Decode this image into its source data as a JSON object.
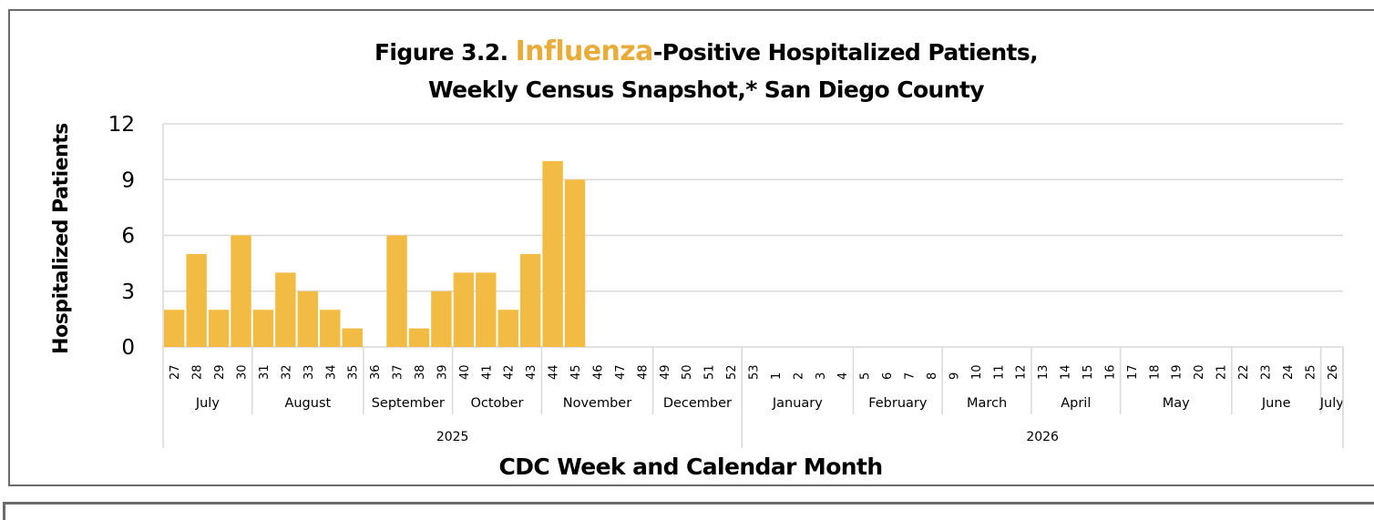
{
  "chart_data": {
    "type": "bar",
    "title": {
      "prefix": "Figure 3.2. ",
      "highlight": "Influenza",
      "suffix": "-Positive Hospitalized Patients,",
      "line2": "Weekly Census Snapshot,* San Diego County"
    },
    "xlabel": "CDC Week and Calendar Month",
    "ylabel": "Hospitalized Patients",
    "ylim": [
      0,
      12
    ],
    "yticks": [
      "0",
      "3",
      "6",
      "9",
      "12"
    ],
    "grid": true,
    "categories": [
      "27",
      "28",
      "29",
      "30",
      "31",
      "32",
      "33",
      "34",
      "35",
      "36",
      "37",
      "38",
      "39",
      "40",
      "41",
      "42",
      "43",
      "44",
      "45",
      "46",
      "47",
      "48",
      "49",
      "50",
      "51",
      "52",
      "53",
      "1",
      "2",
      "3",
      "4",
      "5",
      "6",
      "7",
      "8",
      "9",
      "10",
      "11",
      "12",
      "13",
      "14",
      "15",
      "16",
      "17",
      "18",
      "19",
      "20",
      "21",
      "22",
      "23",
      "24",
      "25",
      "26"
    ],
    "values": [
      2,
      5,
      2,
      6,
      2,
      4,
      3,
      2,
      1,
      0,
      6,
      1,
      3,
      4,
      4,
      2,
      5,
      10,
      9,
      null,
      null,
      null,
      null,
      null,
      null,
      null,
      null,
      null,
      null,
      null,
      null,
      null,
      null,
      null,
      null,
      null,
      null,
      null,
      null,
      null,
      null,
      null,
      null,
      null,
      null,
      null,
      null,
      null,
      null,
      null,
      null,
      null,
      null
    ],
    "months": [
      {
        "label": "July",
        "weeks": 4
      },
      {
        "label": "August",
        "weeks": 5
      },
      {
        "label": "September",
        "weeks": 4
      },
      {
        "label": "October",
        "weeks": 4
      },
      {
        "label": "November",
        "weeks": 5
      },
      {
        "label": "December",
        "weeks": 4
      },
      {
        "label": "January",
        "weeks": 5
      },
      {
        "label": "February",
        "weeks": 4
      },
      {
        "label": "March",
        "weeks": 4
      },
      {
        "label": "April",
        "weeks": 4
      },
      {
        "label": "May",
        "weeks": 5
      },
      {
        "label": "June",
        "weeks": 4
      },
      {
        "label": "July",
        "weeks": 1
      }
    ],
    "years": [
      {
        "label": "2025",
        "weeks": 26
      },
      {
        "label": "2026",
        "weeks": 27
      }
    ],
    "colors": {
      "bar": "#f2bc44",
      "grid": "#d9d9d9",
      "highlight": "#e8ac3a"
    }
  }
}
